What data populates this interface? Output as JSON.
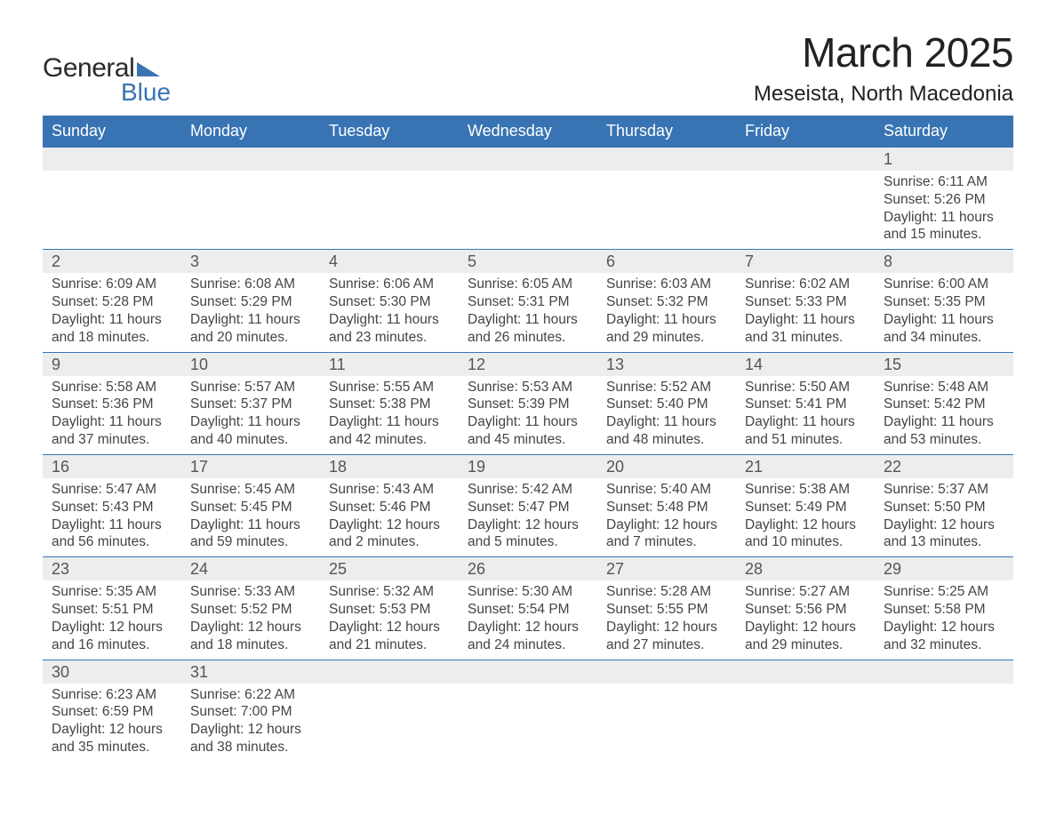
{
  "logo": {
    "text1": "General",
    "text2": "Blue",
    "tri_color": "#3874b3",
    "text_color": "#2a2a2a"
  },
  "header": {
    "month_title": "March 2025",
    "location": "Meseista, North Macedonia"
  },
  "colors": {
    "header_bg": "#3874b3",
    "header_fg": "#ffffff",
    "daynum_bg": "#ededed",
    "row_border": "#3874b3",
    "body_text": "#444444",
    "page_bg": "#ffffff"
  },
  "typography": {
    "month_title_fontsize": 46,
    "location_fontsize": 24,
    "weekday_fontsize": 18,
    "daynum_fontsize": 18,
    "body_fontsize": 15.5,
    "logo_fontsize": 30
  },
  "weekdays": [
    "Sunday",
    "Monday",
    "Tuesday",
    "Wednesday",
    "Thursday",
    "Friday",
    "Saturday"
  ],
  "weeks": [
    [
      {
        "num": "",
        "lines": [
          "",
          "",
          "",
          ""
        ]
      },
      {
        "num": "",
        "lines": [
          "",
          "",
          "",
          ""
        ]
      },
      {
        "num": "",
        "lines": [
          "",
          "",
          "",
          ""
        ]
      },
      {
        "num": "",
        "lines": [
          "",
          "",
          "",
          ""
        ]
      },
      {
        "num": "",
        "lines": [
          "",
          "",
          "",
          ""
        ]
      },
      {
        "num": "",
        "lines": [
          "",
          "",
          "",
          ""
        ]
      },
      {
        "num": "1",
        "lines": [
          "Sunrise: 6:11 AM",
          "Sunset: 5:26 PM",
          "Daylight: 11 hours",
          "and 15 minutes."
        ]
      }
    ],
    [
      {
        "num": "2",
        "lines": [
          "Sunrise: 6:09 AM",
          "Sunset: 5:28 PM",
          "Daylight: 11 hours",
          "and 18 minutes."
        ]
      },
      {
        "num": "3",
        "lines": [
          "Sunrise: 6:08 AM",
          "Sunset: 5:29 PM",
          "Daylight: 11 hours",
          "and 20 minutes."
        ]
      },
      {
        "num": "4",
        "lines": [
          "Sunrise: 6:06 AM",
          "Sunset: 5:30 PM",
          "Daylight: 11 hours",
          "and 23 minutes."
        ]
      },
      {
        "num": "5",
        "lines": [
          "Sunrise: 6:05 AM",
          "Sunset: 5:31 PM",
          "Daylight: 11 hours",
          "and 26 minutes."
        ]
      },
      {
        "num": "6",
        "lines": [
          "Sunrise: 6:03 AM",
          "Sunset: 5:32 PM",
          "Daylight: 11 hours",
          "and 29 minutes."
        ]
      },
      {
        "num": "7",
        "lines": [
          "Sunrise: 6:02 AM",
          "Sunset: 5:33 PM",
          "Daylight: 11 hours",
          "and 31 minutes."
        ]
      },
      {
        "num": "8",
        "lines": [
          "Sunrise: 6:00 AM",
          "Sunset: 5:35 PM",
          "Daylight: 11 hours",
          "and 34 minutes."
        ]
      }
    ],
    [
      {
        "num": "9",
        "lines": [
          "Sunrise: 5:58 AM",
          "Sunset: 5:36 PM",
          "Daylight: 11 hours",
          "and 37 minutes."
        ]
      },
      {
        "num": "10",
        "lines": [
          "Sunrise: 5:57 AM",
          "Sunset: 5:37 PM",
          "Daylight: 11 hours",
          "and 40 minutes."
        ]
      },
      {
        "num": "11",
        "lines": [
          "Sunrise: 5:55 AM",
          "Sunset: 5:38 PM",
          "Daylight: 11 hours",
          "and 42 minutes."
        ]
      },
      {
        "num": "12",
        "lines": [
          "Sunrise: 5:53 AM",
          "Sunset: 5:39 PM",
          "Daylight: 11 hours",
          "and 45 minutes."
        ]
      },
      {
        "num": "13",
        "lines": [
          "Sunrise: 5:52 AM",
          "Sunset: 5:40 PM",
          "Daylight: 11 hours",
          "and 48 minutes."
        ]
      },
      {
        "num": "14",
        "lines": [
          "Sunrise: 5:50 AM",
          "Sunset: 5:41 PM",
          "Daylight: 11 hours",
          "and 51 minutes."
        ]
      },
      {
        "num": "15",
        "lines": [
          "Sunrise: 5:48 AM",
          "Sunset: 5:42 PM",
          "Daylight: 11 hours",
          "and 53 minutes."
        ]
      }
    ],
    [
      {
        "num": "16",
        "lines": [
          "Sunrise: 5:47 AM",
          "Sunset: 5:43 PM",
          "Daylight: 11 hours",
          "and 56 minutes."
        ]
      },
      {
        "num": "17",
        "lines": [
          "Sunrise: 5:45 AM",
          "Sunset: 5:45 PM",
          "Daylight: 11 hours",
          "and 59 minutes."
        ]
      },
      {
        "num": "18",
        "lines": [
          "Sunrise: 5:43 AM",
          "Sunset: 5:46 PM",
          "Daylight: 12 hours",
          "and 2 minutes."
        ]
      },
      {
        "num": "19",
        "lines": [
          "Sunrise: 5:42 AM",
          "Sunset: 5:47 PM",
          "Daylight: 12 hours",
          "and 5 minutes."
        ]
      },
      {
        "num": "20",
        "lines": [
          "Sunrise: 5:40 AM",
          "Sunset: 5:48 PM",
          "Daylight: 12 hours",
          "and 7 minutes."
        ]
      },
      {
        "num": "21",
        "lines": [
          "Sunrise: 5:38 AM",
          "Sunset: 5:49 PM",
          "Daylight: 12 hours",
          "and 10 minutes."
        ]
      },
      {
        "num": "22",
        "lines": [
          "Sunrise: 5:37 AM",
          "Sunset: 5:50 PM",
          "Daylight: 12 hours",
          "and 13 minutes."
        ]
      }
    ],
    [
      {
        "num": "23",
        "lines": [
          "Sunrise: 5:35 AM",
          "Sunset: 5:51 PM",
          "Daylight: 12 hours",
          "and 16 minutes."
        ]
      },
      {
        "num": "24",
        "lines": [
          "Sunrise: 5:33 AM",
          "Sunset: 5:52 PM",
          "Daylight: 12 hours",
          "and 18 minutes."
        ]
      },
      {
        "num": "25",
        "lines": [
          "Sunrise: 5:32 AM",
          "Sunset: 5:53 PM",
          "Daylight: 12 hours",
          "and 21 minutes."
        ]
      },
      {
        "num": "26",
        "lines": [
          "Sunrise: 5:30 AM",
          "Sunset: 5:54 PM",
          "Daylight: 12 hours",
          "and 24 minutes."
        ]
      },
      {
        "num": "27",
        "lines": [
          "Sunrise: 5:28 AM",
          "Sunset: 5:55 PM",
          "Daylight: 12 hours",
          "and 27 minutes."
        ]
      },
      {
        "num": "28",
        "lines": [
          "Sunrise: 5:27 AM",
          "Sunset: 5:56 PM",
          "Daylight: 12 hours",
          "and 29 minutes."
        ]
      },
      {
        "num": "29",
        "lines": [
          "Sunrise: 5:25 AM",
          "Sunset: 5:58 PM",
          "Daylight: 12 hours",
          "and 32 minutes."
        ]
      }
    ],
    [
      {
        "num": "30",
        "lines": [
          "Sunrise: 6:23 AM",
          "Sunset: 6:59 PM",
          "Daylight: 12 hours",
          "and 35 minutes."
        ]
      },
      {
        "num": "31",
        "lines": [
          "Sunrise: 6:22 AM",
          "Sunset: 7:00 PM",
          "Daylight: 12 hours",
          "and 38 minutes."
        ]
      },
      {
        "num": "",
        "lines": [
          "",
          "",
          "",
          ""
        ]
      },
      {
        "num": "",
        "lines": [
          "",
          "",
          "",
          ""
        ]
      },
      {
        "num": "",
        "lines": [
          "",
          "",
          "",
          ""
        ]
      },
      {
        "num": "",
        "lines": [
          "",
          "",
          "",
          ""
        ]
      },
      {
        "num": "",
        "lines": [
          "",
          "",
          "",
          ""
        ]
      }
    ]
  ]
}
